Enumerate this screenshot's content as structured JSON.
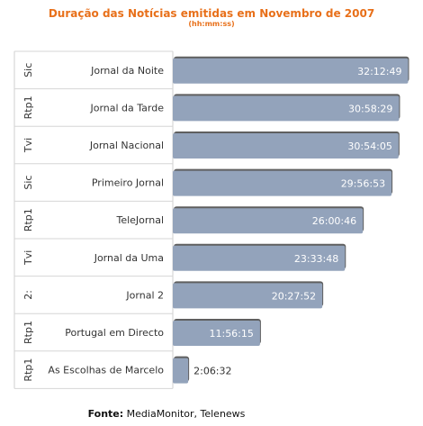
{
  "chart_data": {
    "type": "bar",
    "orientation": "horizontal",
    "title": "Duração das Notícias emitidas em Novembro de 2007",
    "subtitle": "(hh:mm:ss)",
    "groups": [
      "Sic",
      "Rtp1",
      "Tvi",
      "Sic",
      "Rtp1",
      "Tvi",
      "2:",
      "Rtp1",
      "Rtp1"
    ],
    "categories": [
      "Jornal da Noite",
      "Jornal da Tarde",
      "Jornal Nacional",
      "Primeiro Jornal",
      "TeleJornal",
      "Jornal da Uma",
      "Jornal 2",
      "Portugal em Directo",
      "As Escolhas de Marcelo"
    ],
    "labels": [
      "32:12:49",
      "30:58:29",
      "30:54:05",
      "29:56:53",
      "26:00:46",
      "23:33:48",
      "20:27:52",
      "11:56:15",
      "2:06:32"
    ],
    "values_hours": [
      32.2136,
      30.9747,
      30.9014,
      29.9481,
      26.0128,
      23.5633,
      20.4644,
      11.9375,
      2.1089
    ],
    "xlim_hours": [
      0,
      32.4
    ],
    "bar_color": "#93a3bb",
    "shadow_color": "#5f5f5f",
    "value_label_color": "#ffffff",
    "outside_label_color": "#333333"
  },
  "source": {
    "label": "Fonte:",
    "text": " MediaMonitor, Telenews"
  }
}
